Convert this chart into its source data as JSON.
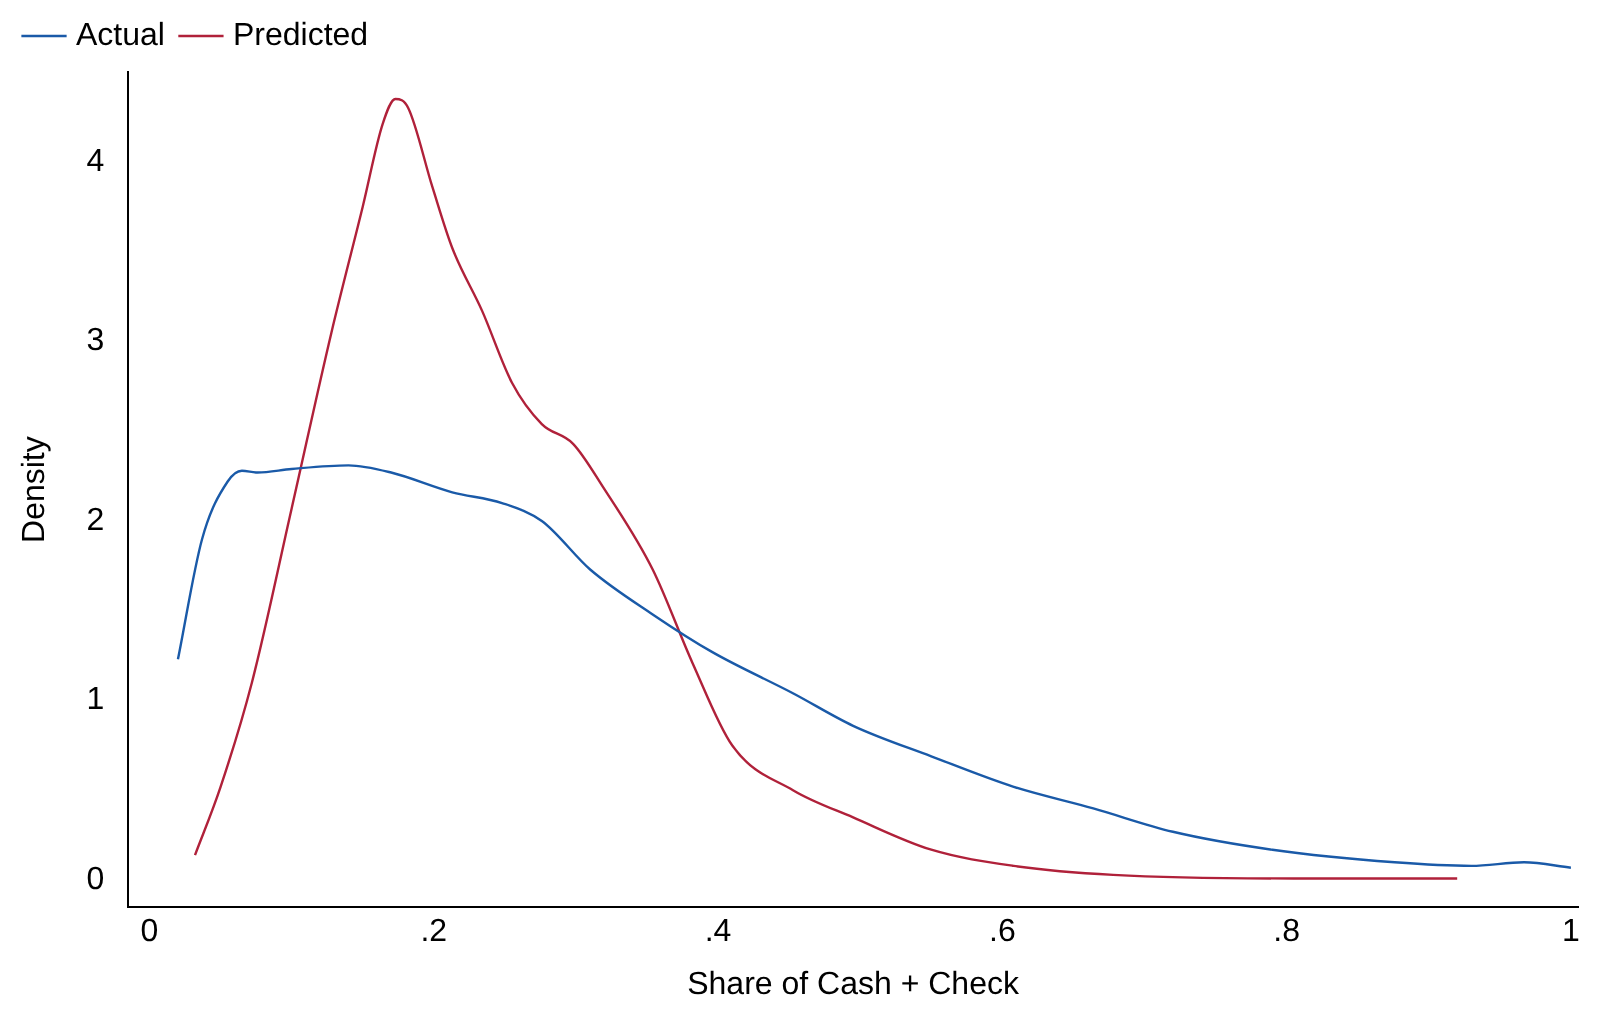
{
  "chart_data": {
    "type": "line",
    "xlabel": "Share of Cash + Check",
    "ylabel": "Density",
    "xlim": [
      -0.015,
      1.005
    ],
    "ylim": [
      -0.15,
      4.5
    ],
    "xticks": [
      0,
      {
        "value": 0.2,
        "label": ".2"
      },
      {
        "value": 0.4,
        "label": ".4"
      },
      {
        "value": 0.6,
        "label": ".6"
      },
      {
        "value": 0.8,
        "label": ".8"
      },
      1
    ],
    "yticks": [
      0,
      1,
      2,
      3,
      4
    ],
    "grid": false,
    "legend": "top left",
    "marker": "none",
    "line_style": "solid",
    "series": [
      {
        "name": "Actual",
        "color": "#1a5aa8",
        "x": [
          0.02,
          0.037,
          0.055,
          0.065,
          0.076,
          0.1,
          0.14,
          0.17,
          0.213,
          0.248,
          0.276,
          0.31,
          0.354,
          0.396,
          0.453,
          0.495,
          0.55,
          0.608,
          0.664,
          0.72,
          0.79,
          0.876,
          0.93,
          0.967,
          1.0
        ],
        "values": [
          1.23,
          1.9,
          2.22,
          2.28,
          2.27,
          2.29,
          2.31,
          2.27,
          2.16,
          2.1,
          2.0,
          1.73,
          1.48,
          1.27,
          1.04,
          0.86,
          0.69,
          0.52,
          0.4,
          0.27,
          0.17,
          0.1,
          0.08,
          0.1,
          0.07
        ]
      },
      {
        "name": "Predicted",
        "color": "#b0213a",
        "x": [
          0.032,
          0.05,
          0.072,
          0.1,
          0.128,
          0.15,
          0.164,
          0.173,
          0.182,
          0.199,
          0.213,
          0.234,
          0.255,
          0.276,
          0.298,
          0.319,
          0.354,
          0.382,
          0.41,
          0.453,
          0.495,
          0.55,
          0.608,
          0.678,
          0.805,
          0.92
        ],
        "values": [
          0.14,
          0.52,
          1.1,
          2.07,
          3.05,
          3.75,
          4.21,
          4.35,
          4.3,
          3.86,
          3.52,
          3.17,
          2.77,
          2.54,
          2.43,
          2.19,
          1.73,
          1.21,
          0.75,
          0.5,
          0.35,
          0.17,
          0.08,
          0.03,
          0.01,
          0.01
        ]
      }
    ]
  }
}
